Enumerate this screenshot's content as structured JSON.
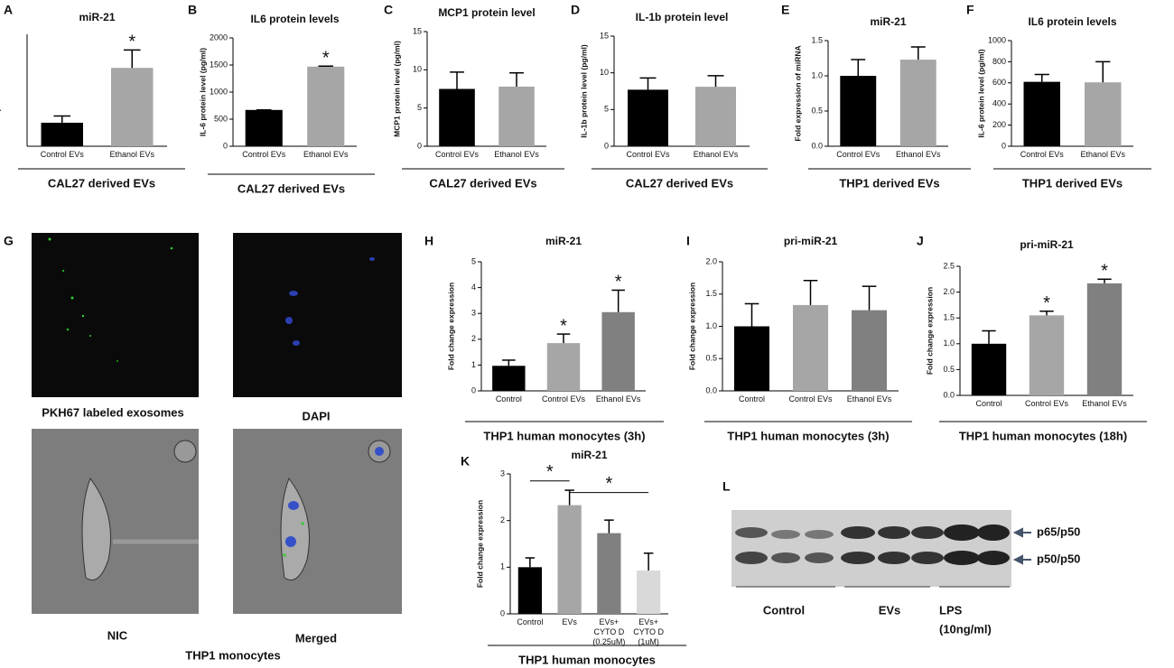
{
  "chart_data": [
    {
      "type": "bar",
      "panel": "A",
      "title": "miR-21",
      "ylabel": "Fold expression of miRNA",
      "xlabel": "CAL27 derived EVs",
      "categories": [
        "Control EVs",
        "Ethanol EVs"
      ],
      "values": [
        1.05,
        3.5
      ],
      "errors": [
        0.3,
        0.8
      ],
      "colors": [
        "#000000",
        "#a6a6a6"
      ],
      "ylim": [
        0,
        5
      ],
      "significance": [
        null,
        "*"
      ]
    },
    {
      "type": "bar",
      "panel": "B",
      "title": "IL6 protein levels",
      "ylabel": "IL-6 protein level (pg/ml)",
      "xlabel": "CAL27 derived EVs",
      "categories": [
        "Control EVs",
        "Ethanol EVs"
      ],
      "values": [
        670,
        1470
      ],
      "errors": [
        0,
        10
      ],
      "colors": [
        "#000000",
        "#a6a6a6"
      ],
      "ylim": [
        0,
        2000
      ],
      "yticks": [
        0,
        500,
        1000,
        1500,
        2000
      ],
      "significance": [
        null,
        "*"
      ]
    },
    {
      "type": "bar",
      "panel": "C",
      "title": "MCP1 protein level",
      "ylabel": "MCP1 protein level (pg/ml)",
      "xlabel": "CAL27 derived EVs",
      "categories": [
        "Control EVs",
        "Ethanol EVs"
      ],
      "values": [
        7.5,
        7.8
      ],
      "errors": [
        2.2,
        1.8
      ],
      "colors": [
        "#000000",
        "#a6a6a6"
      ],
      "ylim": [
        0,
        15
      ],
      "yticks": [
        0,
        5,
        10,
        15
      ]
    },
    {
      "type": "bar",
      "panel": "D",
      "title": "IL-1b protein level",
      "ylabel": "IL-1b protein level (pg/ml)",
      "xlabel": "CAL27 derived EVs",
      "categories": [
        "Control EVs",
        "Ethanol EVs"
      ],
      "values": [
        7.7,
        8.1
      ],
      "errors": [
        1.6,
        1.5
      ],
      "colors": [
        "#000000",
        "#a6a6a6"
      ],
      "ylim": [
        0,
        15
      ],
      "yticks": [
        0,
        5,
        10,
        15
      ]
    },
    {
      "type": "bar",
      "panel": "E",
      "title": "miR-21",
      "ylabel": "Fold expression of miRNA",
      "xlabel": "THP1 derived EVs",
      "categories": [
        "Control EVs",
        "Ethanol EVs"
      ],
      "values": [
        1.0,
        1.23
      ],
      "errors": [
        0.23,
        0.18
      ],
      "colors": [
        "#000000",
        "#a6a6a6"
      ],
      "ylim": [
        0,
        1.5
      ],
      "yticks": [
        {
          "value": 0,
          "label": "0.0"
        },
        0.5,
        {
          "value": 1,
          "label": "1.0"
        },
        1.5
      ]
    },
    {
      "type": "bar",
      "panel": "F",
      "title": "IL6 protein levels",
      "ylabel": "IL-6 protein level (pg/ml)",
      "xlabel": "THP1 derived EVs",
      "categories": [
        "Control EVs",
        "Ethanol EVs"
      ],
      "values": [
        610,
        605
      ],
      "errors": [
        70,
        195
      ],
      "colors": [
        "#000000",
        "#a6a6a6"
      ],
      "ylim": [
        0,
        1000
      ],
      "yticks": [
        0,
        200,
        400,
        600,
        800,
        1000
      ]
    },
    {
      "type": "bar",
      "panel": "H",
      "title": "miR-21",
      "ylabel": "Fold change expression",
      "xlabel": "THP1 human monocytes (3h)",
      "categories": [
        "Control",
        "Control EVs",
        "Ethanol EVs"
      ],
      "values": [
        0.97,
        1.85,
        3.05
      ],
      "errors": [
        0.22,
        0.35,
        0.85
      ],
      "colors": [
        "#000000",
        "#a6a6a6",
        "#808080"
      ],
      "ylim": [
        0,
        5
      ],
      "yticks": [
        0,
        1,
        2,
        3,
        4,
        5
      ],
      "significance": [
        null,
        "*",
        "*"
      ]
    },
    {
      "type": "bar",
      "panel": "I",
      "title": "pri-miR-21",
      "ylabel": "Fold change expression",
      "xlabel": "THP1 human monocytes (3h)",
      "categories": [
        "Control",
        "Control EVs",
        "Ethanol EVs"
      ],
      "values": [
        1.0,
        1.33,
        1.25
      ],
      "errors": [
        0.35,
        0.38,
        0.37
      ],
      "colors": [
        "#000000",
        "#a6a6a6",
        "#808080"
      ],
      "ylim": [
        0,
        2
      ],
      "yticks": [
        {
          "value": 0,
          "label": "0.0"
        },
        0.5,
        {
          "value": 1,
          "label": "1.0"
        },
        1.5,
        {
          "value": 2,
          "label": "2.0"
        }
      ]
    },
    {
      "type": "bar",
      "panel": "J",
      "title": "pri-miR-21",
      "ylabel": "Fold change expression",
      "xlabel": "THP1 human monocytes (18h)",
      "categories": [
        "Control",
        "Control EVs",
        "Ethanol EVs"
      ],
      "values": [
        1.0,
        1.55,
        2.17
      ],
      "errors": [
        0.25,
        0.08,
        0.08
      ],
      "colors": [
        "#000000",
        "#a6a6a6",
        "#808080"
      ],
      "ylim": [
        0,
        2.5
      ],
      "yticks": [
        {
          "value": 0,
          "label": "0.0"
        },
        0.5,
        {
          "value": 1,
          "label": "1.0"
        },
        1.5,
        {
          "value": 2,
          "label": "2.0"
        },
        2.5
      ],
      "significance": [
        null,
        "*",
        "*"
      ]
    },
    {
      "type": "bar",
      "panel": "K",
      "title": "miR-21",
      "ylabel": "Fold change expression",
      "xlabel": "THP1 human monocytes",
      "categories": [
        "Control",
        "EVs",
        "EVs+ CYTO D (0.25uM)",
        "EVs+ CYTO D (1uM)"
      ],
      "values": [
        1.0,
        2.33,
        1.73,
        0.93
      ],
      "errors": [
        0.2,
        0.32,
        0.28,
        0.37
      ],
      "colors": [
        "#000000",
        "#a6a6a6",
        "#808080",
        "#d9d9d9"
      ],
      "ylim": [
        0,
        3
      ],
      "yticks": [
        0,
        1,
        2,
        3
      ],
      "comparison_labels": [
        "*",
        "*"
      ]
    }
  ],
  "micrographs": {
    "panel": "G",
    "images": [
      "PKH67 labeled exosomes",
      "DAPI",
      "NIC",
      "Merged"
    ],
    "caption": "THP1 monocytes"
  },
  "blot": {
    "panel": "L",
    "bands": [
      "p65/p50",
      "p50/p50"
    ],
    "groups": [
      "Control",
      "EVs",
      "LPS"
    ],
    "group_note": "(10ng/ml)"
  }
}
